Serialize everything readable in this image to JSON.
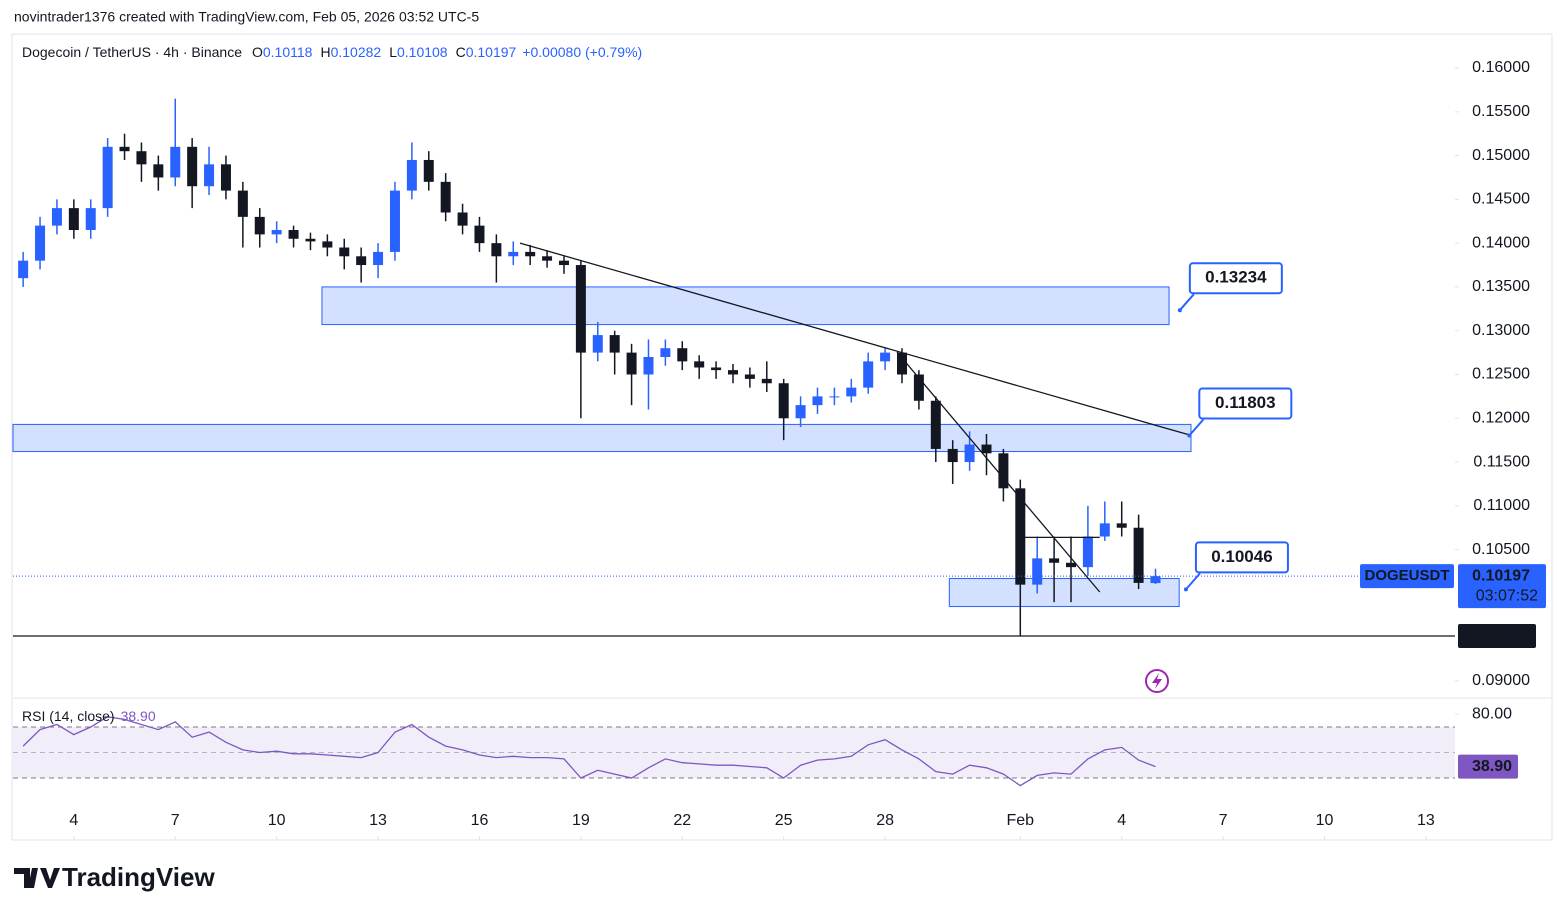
{
  "header": {
    "attribution": "novintrader1376 created with TradingView.com, Feb 05, 2026 03:52 UTC-5",
    "symbol": "Dogecoin / TetherUS · 4h · Binance",
    "ohlc": [
      {
        "key": "O",
        "value": 0.10118
      },
      {
        "key": "H",
        "value": 0.10282
      },
      {
        "key": "L",
        "value": 0.10108
      },
      {
        "key": "C",
        "value": 0.10197
      }
    ],
    "change": "+0.00080 (+0.79%)"
  },
  "chart_data": [
    {
      "type": "candlestick",
      "x": [
        2.5,
        3.0,
        3.5,
        4.0,
        4.5,
        5.0,
        5.5,
        6.0,
        6.5,
        7.0,
        7.5,
        8.0,
        8.5,
        9.0,
        9.5,
        10.0,
        10.5,
        11.0,
        11.5,
        12.0,
        12.5,
        13.0,
        13.5,
        14.0,
        14.5,
        15.0,
        15.5,
        16.0,
        16.5,
        17.0,
        17.5,
        18.0,
        18.5,
        19.0,
        19.5,
        20.0,
        20.5,
        21.0,
        21.5,
        22.0,
        22.5,
        23.0,
        23.5,
        24.0,
        24.5,
        25.0,
        25.5,
        26.0,
        26.5,
        27.0,
        27.5,
        28.0,
        28.5,
        29.0,
        29.5,
        30.0,
        30.5,
        31.0,
        31.5,
        32.0,
        32.5,
        33.0,
        33.5,
        34.0,
        34.5,
        35.0,
        35.5,
        36.0
      ],
      "series": [
        {
          "name": "DOGEUSDT",
          "up_color": "#2962ff",
          "down_color": "#131722",
          "open": [
            0.136,
            0.138,
            0.142,
            0.144,
            0.1415,
            0.144,
            0.151,
            0.1505,
            0.149,
            0.1475,
            0.151,
            0.1465,
            0.149,
            0.146,
            0.143,
            0.141,
            0.1415,
            0.1405,
            0.1402,
            0.1395,
            0.1385,
            0.1375,
            0.139,
            0.146,
            0.1495,
            0.147,
            0.1435,
            0.142,
            0.14,
            0.1385,
            0.139,
            0.1385,
            0.138,
            0.1375,
            0.1275,
            0.1295,
            0.1275,
            0.125,
            0.127,
            0.128,
            0.1265,
            0.1258,
            0.1255,
            0.125,
            0.1245,
            0.124,
            0.12,
            0.1215,
            0.1225,
            0.1225,
            0.1235,
            0.1265,
            0.1275,
            0.125,
            0.122,
            0.1165,
            0.115,
            0.117,
            0.116,
            0.112,
            0.101,
            0.104,
            0.1035,
            0.103,
            0.1065,
            0.108,
            0.1075,
            0.10118
          ],
          "high": [
            0.139,
            0.143,
            0.145,
            0.145,
            0.145,
            0.152,
            0.1525,
            0.1515,
            0.15,
            0.1565,
            0.152,
            0.151,
            0.15,
            0.147,
            0.144,
            0.1425,
            0.142,
            0.1412,
            0.141,
            0.1405,
            0.1395,
            0.14,
            0.147,
            0.1515,
            0.1505,
            0.148,
            0.1445,
            0.143,
            0.141,
            0.1402,
            0.1398,
            0.1392,
            0.1385,
            0.138,
            0.131,
            0.13,
            0.1285,
            0.129,
            0.129,
            0.1288,
            0.1272,
            0.1265,
            0.1262,
            0.1258,
            0.1265,
            0.1245,
            0.1225,
            0.1235,
            0.1235,
            0.1245,
            0.1275,
            0.128,
            0.128,
            0.1255,
            0.1225,
            0.1175,
            0.1185,
            0.1182,
            0.1165,
            0.113,
            0.1065,
            0.1065,
            0.1065,
            0.11,
            0.1105,
            0.1105,
            0.109,
            0.10282
          ],
          "low": [
            0.135,
            0.137,
            0.141,
            0.1405,
            0.1405,
            0.143,
            0.1495,
            0.147,
            0.146,
            0.1465,
            0.144,
            0.1455,
            0.145,
            0.1395,
            0.1395,
            0.14,
            0.1395,
            0.1392,
            0.1385,
            0.137,
            0.1355,
            0.136,
            0.138,
            0.145,
            0.146,
            0.1425,
            0.141,
            0.139,
            0.1355,
            0.1375,
            0.1375,
            0.1372,
            0.1365,
            0.12,
            0.1265,
            0.125,
            0.1215,
            0.121,
            0.126,
            0.1255,
            0.1245,
            0.1245,
            0.124,
            0.1235,
            0.123,
            0.1175,
            0.119,
            0.1205,
            0.1215,
            0.1218,
            0.1228,
            0.1255,
            0.124,
            0.121,
            0.115,
            0.1125,
            0.114,
            0.1135,
            0.1105,
            0.0951,
            0.1,
            0.099,
            0.099,
            0.102,
            0.106,
            0.1065,
            0.1005,
            0.10108
          ],
          "close": [
            0.138,
            0.142,
            0.144,
            0.1415,
            0.144,
            0.151,
            0.1505,
            0.149,
            0.1475,
            0.151,
            0.1465,
            0.149,
            0.146,
            0.143,
            0.141,
            0.1415,
            0.1405,
            0.1402,
            0.1395,
            0.1385,
            0.1375,
            0.139,
            0.146,
            0.1495,
            0.147,
            0.1435,
            0.142,
            0.14,
            0.1385,
            0.139,
            0.1385,
            0.138,
            0.1375,
            0.1275,
            0.1295,
            0.1275,
            0.125,
            0.127,
            0.128,
            0.1265,
            0.1258,
            0.1255,
            0.125,
            0.1245,
            0.124,
            0.12,
            0.1215,
            0.1225,
            0.1225,
            0.1235,
            0.1265,
            0.1275,
            0.125,
            0.122,
            0.1165,
            0.115,
            0.117,
            0.116,
            0.112,
            0.101,
            0.104,
            0.1035,
            0.103,
            0.1065,
            0.108,
            0.1075,
            0.1012,
            0.10197
          ]
        }
      ],
      "xlim": [
        2.2,
        44.86
      ],
      "xticks": [
        4,
        7,
        10,
        13,
        16,
        19,
        22,
        25,
        28,
        {
          "value": 32,
          "label": "Feb"
        },
        {
          "value": 35,
          "label": "4"
        },
        {
          "value": 38,
          "label": "7"
        },
        {
          "value": 41,
          "label": "10"
        },
        {
          "value": 44,
          "label": "13"
        }
      ],
      "ylim": [
        0.08817,
        0.16377
      ],
      "yticks": [
        {
          "value": 0.09,
          "label": "0.09000"
        },
        {
          "value": 0.105,
          "label": "0.10500"
        },
        {
          "value": 0.11,
          "label": "0.11000"
        },
        {
          "value": 0.115,
          "label": "0.11500"
        },
        {
          "value": 0.12,
          "label": "0.12000"
        },
        {
          "value": 0.125,
          "label": "0.12500"
        },
        {
          "value": 0.13,
          "label": "0.13000"
        },
        {
          "value": 0.135,
          "label": "0.13500"
        },
        {
          "value": 0.14,
          "label": "0.14000"
        },
        {
          "value": 0.145,
          "label": "0.14500"
        },
        {
          "value": 0.15,
          "label": "0.15000"
        },
        {
          "value": 0.155,
          "label": "0.15500"
        },
        {
          "value": 0.16,
          "label": "0.16000"
        }
      ],
      "zones": [
        {
          "x": [
            11.34,
            36.4
          ],
          "y": [
            0.1307,
            0.135
          ]
        },
        {
          "x": [
            2.2,
            37.05
          ],
          "y": [
            0.1162,
            0.1193
          ]
        },
        {
          "x": [
            29.9,
            36.7
          ],
          "y": [
            0.0985,
            0.1017
          ]
        }
      ],
      "trendlines": [
        {
          "x": [
            17.2,
            37.0
          ],
          "y": [
            0.14,
            0.1181
          ]
        },
        {
          "x": [
            28.35,
            34.35
          ],
          "y": [
            0.12757,
            0.10016
          ]
        },
        {
          "x": [
            31.9,
            34.35
          ],
          "y": [
            0.1064,
            0.1064
          ]
        }
      ],
      "callouts": [
        {
          "x": 36.72,
          "value": 0.13234
        },
        {
          "x": 37.0,
          "value": 0.11803
        },
        {
          "x": 36.9,
          "value": 0.10046
        }
      ],
      "horizontal_line": 0.09514,
      "last_price": {
        "symbol": "DOGEUSDT",
        "countdown": "03:07:52"
      }
    },
    {
      "type": "line",
      "title": "RSI (14, close)",
      "x": [
        2.5,
        3.0,
        3.5,
        4.0,
        4.5,
        5.0,
        5.5,
        6.0,
        6.5,
        7.0,
        7.5,
        8.0,
        8.5,
        9.0,
        9.5,
        10.0,
        10.5,
        11.0,
        11.5,
        12.0,
        12.5,
        13.0,
        13.5,
        14.0,
        14.5,
        15.0,
        15.5,
        16.0,
        16.5,
        17.0,
        17.5,
        18.0,
        18.5,
        19.0,
        19.5,
        20.0,
        20.5,
        21.0,
        21.5,
        22.0,
        22.5,
        23.0,
        23.5,
        24.0,
        24.5,
        25.0,
        25.5,
        26.0,
        26.5,
        27.0,
        27.5,
        28.0,
        28.5,
        29.0,
        29.5,
        30.0,
        30.5,
        31.0,
        31.5,
        32.0,
        32.5,
        33.0,
        33.5,
        34.0,
        34.5,
        35.0,
        35.5,
        36.0
      ],
      "series": [
        {
          "name": "RSI",
          "color": "#7e57c2",
          "values": [
            55,
            68,
            72,
            64,
            70,
            78,
            76,
            72,
            68,
            74,
            62,
            66,
            58,
            52,
            50,
            51,
            49,
            49,
            48,
            47,
            46,
            50,
            66,
            72,
            62,
            55,
            52,
            48,
            46,
            47,
            46,
            46,
            45,
            30,
            36,
            33,
            30,
            38,
            45,
            42,
            41,
            40,
            40,
            39,
            38,
            30,
            40,
            44,
            45,
            47,
            56,
            60,
            52,
            45,
            35,
            33,
            40,
            38,
            33,
            24,
            32,
            34,
            33,
            45,
            52,
            54,
            44,
            38.9
          ],
          "last_label": "38.90"
        }
      ],
      "xlim": [
        2.2,
        44.86
      ],
      "ylim": [
        12.7,
        91.2
      ],
      "yticks": [
        {
          "value": 80,
          "label": "80.00"
        }
      ],
      "bands": [
        30,
        70
      ],
      "midline": 50
    }
  ],
  "footer": {
    "logo": "TradingView"
  }
}
